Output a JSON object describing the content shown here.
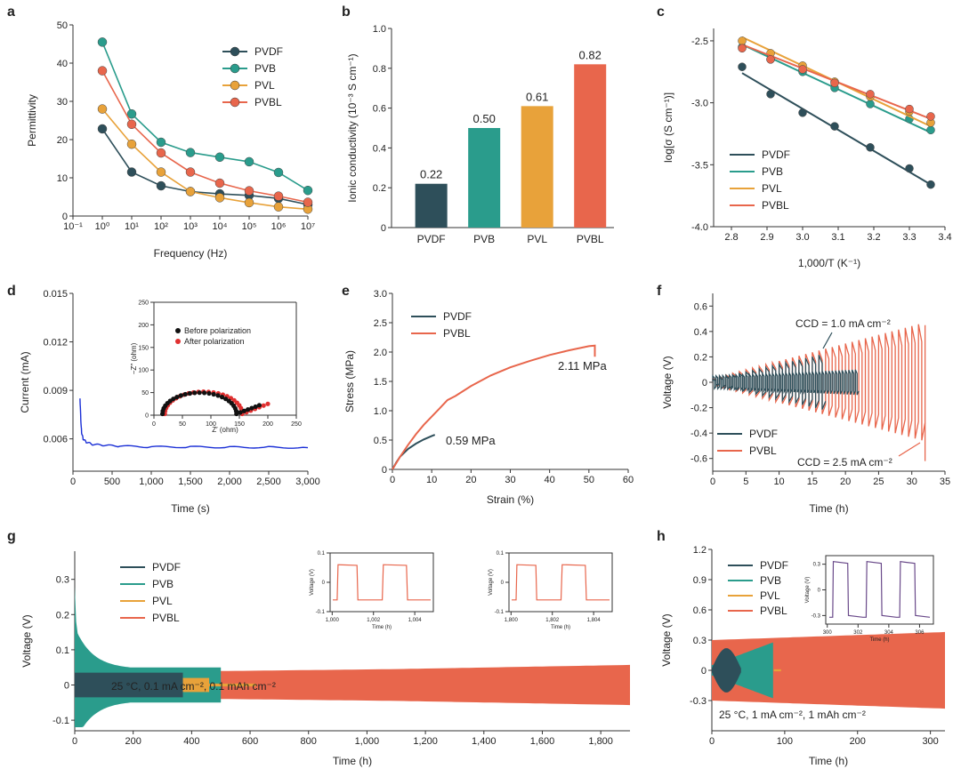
{
  "colors": {
    "PVDF": "#2e4f5a",
    "PVB": "#2a9c8c",
    "PVL": "#e8a23a",
    "PVBL": "#e8664c",
    "axis": "#333333",
    "blue": "#1a2fd6",
    "inset_black": "#111111",
    "inset_red": "#e03030",
    "purple": "#6a4a8a"
  },
  "chart_data": [
    {
      "panel": "a",
      "type": "line",
      "xscale": "log",
      "xlabel": "Frequency (Hz)",
      "ylabel": "Permittivity",
      "xlim": [
        0.1,
        10000000
      ],
      "ylim": [
        0,
        50
      ],
      "x": [
        1,
        10,
        100,
        1000,
        10000,
        100000,
        1000000,
        10000000
      ],
      "xtick_labels": [
        "10⁻¹",
        "10⁰",
        "10¹",
        "10²",
        "10³",
        "10⁴",
        "10⁵",
        "10⁶",
        "10⁷"
      ],
      "yticks": [
        0,
        10,
        20,
        30,
        40,
        50
      ],
      "legend": "top-right",
      "series": [
        {
          "name": "PVDF",
          "values": [
            22.8,
            11.5,
            7.9,
            6.4,
            5.8,
            5.4,
            4.6,
            3.0
          ]
        },
        {
          "name": "PVB",
          "values": [
            45.5,
            26.7,
            19.3,
            16.6,
            15.4,
            14.2,
            11.4,
            6.7
          ]
        },
        {
          "name": "PVL",
          "values": [
            28.0,
            18.8,
            11.5,
            6.4,
            4.8,
            3.5,
            2.4,
            1.8
          ]
        },
        {
          "name": "PVBL",
          "values": [
            38.0,
            24.0,
            16.5,
            11.5,
            8.6,
            6.6,
            5.2,
            3.6
          ]
        }
      ]
    },
    {
      "panel": "b",
      "type": "bar",
      "ylabel": "Ionic conductivity (10⁻³ S cm⁻¹)",
      "categories": [
        "PVDF",
        "PVB",
        "PVL",
        "PVBL"
      ],
      "values": [
        0.22,
        0.5,
        0.61,
        0.82
      ],
      "value_labels": [
        "0.22",
        "0.50",
        "0.61",
        "0.82"
      ],
      "ylim": [
        0,
        1.0
      ],
      "ytick_labels": [
        "0",
        "0.2",
        "0.4",
        "0.6",
        "0.8",
        "1.0"
      ]
    },
    {
      "panel": "c",
      "type": "scatter",
      "xlabel": "1,000/T (K⁻¹)",
      "ylabel": "log[σ (S cm⁻¹)]",
      "xlim": [
        2.75,
        3.4
      ],
      "ylim": [
        -4.0,
        -2.4
      ],
      "xtick_labels": [
        "2.8",
        "2.9",
        "3.0",
        "3.1",
        "3.2",
        "3.3",
        "3.4"
      ],
      "ytick_labels": [
        "-4.0",
        "-3.5",
        "-3.0",
        "-2.5"
      ],
      "x": [
        2.83,
        2.91,
        3.0,
        3.09,
        3.19,
        3.3,
        3.36
      ],
      "legend": "bottom-left",
      "series": [
        {
          "name": "PVDF",
          "values": [
            -2.71,
            -2.93,
            -3.08,
            -3.19,
            -3.36,
            -3.53,
            -3.66
          ],
          "fit": [
            -2.76,
            -3.66
          ]
        },
        {
          "name": "PVB",
          "values": [
            -2.55,
            -2.65,
            -2.75,
            -2.88,
            -3.01,
            -3.13,
            -3.22
          ],
          "fit": [
            -2.53,
            -3.24
          ]
        },
        {
          "name": "PVL",
          "values": [
            -2.5,
            -2.6,
            -2.7,
            -2.83,
            -2.95,
            -3.07,
            -3.16
          ],
          "fit": [
            -2.47,
            -3.19
          ]
        },
        {
          "name": "PVBL",
          "values": [
            -2.56,
            -2.65,
            -2.73,
            -2.84,
            -2.93,
            -3.05,
            -3.11
          ],
          "fit": [
            -2.53,
            -3.13
          ]
        }
      ]
    },
    {
      "panel": "d",
      "type": "line",
      "xlabel": "Time (s)",
      "ylabel": "Current (mA)",
      "xlim": [
        0,
        3000
      ],
      "ylim": [
        0.004,
        0.015
      ],
      "xtick_labels": [
        "0",
        "500",
        "1,000",
        "1,500",
        "2,000",
        "2,500",
        "3,000"
      ],
      "ytick_labels": [
        "0.006",
        "0.009",
        "0.012",
        "0.015"
      ],
      "series": [
        {
          "name": "current",
          "x": [
            90,
            100,
            110,
            130,
            170,
            250,
            400,
            600,
            1000,
            1500,
            2000,
            2500,
            3000
          ],
          "values": [
            0.0085,
            0.0072,
            0.0064,
            0.006,
            0.0058,
            0.00565,
            0.0056,
            0.00555,
            0.0055,
            0.0055,
            0.00548,
            0.00548,
            0.00545
          ]
        }
      ],
      "inset": {
        "type": "scatter",
        "xlabel": "Z′ (ohm)",
        "ylabel": "−Z″ (ohm)",
        "xlim": [
          0,
          250
        ],
        "ylim": [
          0,
          250
        ],
        "xtick_labels": [
          "0",
          "50",
          "100",
          "150",
          "200",
          "250"
        ],
        "ytick_labels": [
          "0",
          "50",
          "100",
          "150",
          "200",
          "250"
        ],
        "legend": [
          "Before polarization",
          "After polarization"
        ],
        "before": {
          "center": 80,
          "radius": 65,
          "tail_end": [
            185,
            22
          ]
        },
        "after": {
          "center": 87,
          "radius": 68,
          "tail_end": [
            200,
            25
          ]
        }
      }
    },
    {
      "panel": "e",
      "type": "line",
      "xlabel": "Strain (%)",
      "ylabel": "Stress (MPa)",
      "xlim": [
        0,
        60
      ],
      "ylim": [
        0,
        3.0
      ],
      "xtick_labels": [
        "0",
        "10",
        "20",
        "30",
        "40",
        "50",
        "60"
      ],
      "ytick_labels": [
        "0",
        "0.5",
        "1.0",
        "1.5",
        "2.0",
        "2.5",
        "3.0"
      ],
      "legend": "top-left",
      "series": [
        {
          "name": "PVDF",
          "x": [
            0,
            1,
            2,
            4,
            6,
            8,
            10,
            10.8
          ],
          "values": [
            0,
            0.12,
            0.22,
            0.35,
            0.44,
            0.51,
            0.57,
            0.59
          ]
        },
        {
          "name": "PVBL",
          "x": [
            0,
            2,
            4,
            6,
            8,
            10,
            12,
            14,
            16,
            20,
            25,
            30,
            35,
            40,
            45,
            50,
            51.5
          ],
          "values": [
            0,
            0.22,
            0.42,
            0.6,
            0.76,
            0.9,
            1.04,
            1.18,
            1.25,
            1.42,
            1.6,
            1.74,
            1.85,
            1.95,
            2.03,
            2.1,
            2.11
          ]
        }
      ],
      "annotations": [
        "0.59 MPa",
        "2.11 MPa"
      ]
    },
    {
      "panel": "f",
      "type": "line",
      "xlabel": "Time (h)",
      "ylabel": "Voltage (V)",
      "xlim": [
        0,
        35
      ],
      "ylim": [
        -0.7,
        0.7
      ],
      "xtick_labels": [
        "0",
        "5",
        "10",
        "15",
        "20",
        "25",
        "30",
        "35"
      ],
      "ytick_labels": [
        "-0.6",
        "-0.4",
        "-0.2",
        "0",
        "0.2",
        "0.4",
        "0.6"
      ],
      "legend": "bottom-left",
      "series": [
        {
          "name": "PVDF",
          "end_h": 22
        },
        {
          "name": "PVBL",
          "end_h": 32
        }
      ],
      "annotations": [
        "CCD = 1.0 mA cm⁻²",
        "CCD = 2.5 mA cm⁻²"
      ]
    },
    {
      "panel": "g",
      "type": "area",
      "xlabel": "Time (h)",
      "ylabel": "Voltage (V)",
      "xlim": [
        0,
        1900
      ],
      "ylim": [
        -0.13,
        0.38
      ],
      "xtick_labels": [
        "0",
        "200",
        "400",
        "600",
        "800",
        "1,000",
        "1,200",
        "1,400",
        "1,600",
        "1,800"
      ],
      "ytick_labels": [
        "-0.1",
        "0",
        "0.1",
        "0.2",
        "0.3"
      ],
      "legend": "top-left",
      "series": [
        {
          "name": "PVDF",
          "end_h": 370
        },
        {
          "name": "PVB",
          "end_h": 500
        },
        {
          "name": "PVL",
          "end_h": 620
        },
        {
          "name": "PVBL",
          "end_h": 1900
        }
      ],
      "annotation": "25 °C, 0.1 mA cm⁻², 0.1 mAh cm⁻²",
      "insets": [
        {
          "xlim": [
            1000,
            1005
          ],
          "xtick_labels": [
            "1,000",
            "1,002",
            "1,004"
          ],
          "ytick_labels": [
            "-0.1",
            "0",
            "0.1"
          ],
          "xlabel": "Time (h)",
          "ylabel": "Voltage (V)"
        },
        {
          "xlim": [
            1800,
            1805
          ],
          "xtick_labels": [
            "1,800",
            "1,802",
            "1,804"
          ],
          "ytick_labels": [
            "-0.1",
            "0",
            "0.1"
          ],
          "xlabel": "Time (h)",
          "ylabel": "Voltage (V)"
        }
      ]
    },
    {
      "panel": "h",
      "type": "area",
      "xlabel": "Time (h)",
      "ylabel": "Voltage (V)",
      "xlim": [
        0,
        320
      ],
      "ylim": [
        -0.6,
        1.2
      ],
      "xtick_labels": [
        "0",
        "100",
        "200",
        "300"
      ],
      "ytick_labels": [
        "-0.3",
        "0",
        "0.3",
        "0.6",
        "0.9",
        "1.2"
      ],
      "legend": "top-left",
      "series": [
        {
          "name": "PVDF",
          "end_h": 40
        },
        {
          "name": "PVB",
          "end_h": 85
        },
        {
          "name": "PVL",
          "end_h": 95
        },
        {
          "name": "PVBL",
          "end_h": 320
        }
      ],
      "annotation": "25 °C, 1 mA cm⁻², 1 mAh cm⁻²",
      "inset": {
        "xlim": [
          300,
          307
        ],
        "xtick_labels": [
          "300",
          "302",
          "304",
          "306"
        ],
        "ytick_labels": [
          "-0.3",
          "0",
          "0.3"
        ],
        "xlabel": "Time (h)",
        "ylabel": "Voltage (V)"
      }
    }
  ]
}
